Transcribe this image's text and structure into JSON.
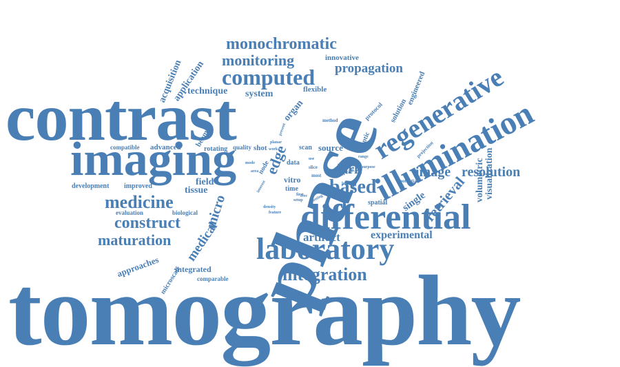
{
  "color": "#4a7fb6",
  "words": {
    "tomography": "tomography",
    "phase": "phase",
    "contrast": "contrast",
    "imaging": "imaging",
    "illumination": "illumination",
    "regenerative": "regenerative",
    "differential": "differential",
    "laboratory": "laboratory",
    "based": "based",
    "medicine": "medicine",
    "construct": "construct",
    "maturation": "maturation",
    "integration": "integration",
    "computed": "computed",
    "monitoring": "monitoring",
    "monochromatic": "monochromatic",
    "propagation": "propagation",
    "retrieval": "retrieval",
    "resolution": "resolution",
    "image": "image",
    "edge": "edge",
    "micro": "micro",
    "medical": "medical",
    "experimental": "experimental",
    "artifact": "artifact",
    "approaches": "approaches",
    "microscale": "microscale",
    "integrated": "integrated",
    "comparable": "comparable",
    "acquisition": "acquisition",
    "application": "application",
    "technique": "technique",
    "system": "system",
    "innovative": "innovative",
    "flexible": "flexible",
    "organ": "organ",
    "protocol": "protocol",
    "solution": "solution",
    "engineered": "engineered",
    "beam": "beam",
    "compatible": "compatible",
    "advanced": "advanced",
    "rotating": "rotating",
    "quality": "quality",
    "shot": "shot",
    "scan": "scan",
    "source": "source",
    "optic": "optic",
    "development": "development",
    "improved": "improved",
    "field": "field",
    "tissue": "tissue",
    "evaluation": "evaluation",
    "biological": "biological",
    "dark": "dark",
    "single": "single",
    "volumetric": "volumetric",
    "visualization": "visualization",
    "spatial": "spatial",
    "data": "data",
    "vitro": "vitro",
    "time": "time",
    "node": "node",
    "streak": "streak",
    "slice": "slice",
    "most": "most",
    "method": "method",
    "present": "present",
    "planar": "planar",
    "work": "work",
    "projection": "projection",
    "potential": "potential",
    "density": "density",
    "feature": "feature",
    "interest": "interest",
    "area": "area",
    "higher": "higher",
    "setup": "setup",
    "first": "first",
    "mode": "mode",
    "purpose": "purpose",
    "range": "range",
    "use": "use",
    "free": "free",
    "setting": "setting",
    "ideal": "ideal"
  }
}
